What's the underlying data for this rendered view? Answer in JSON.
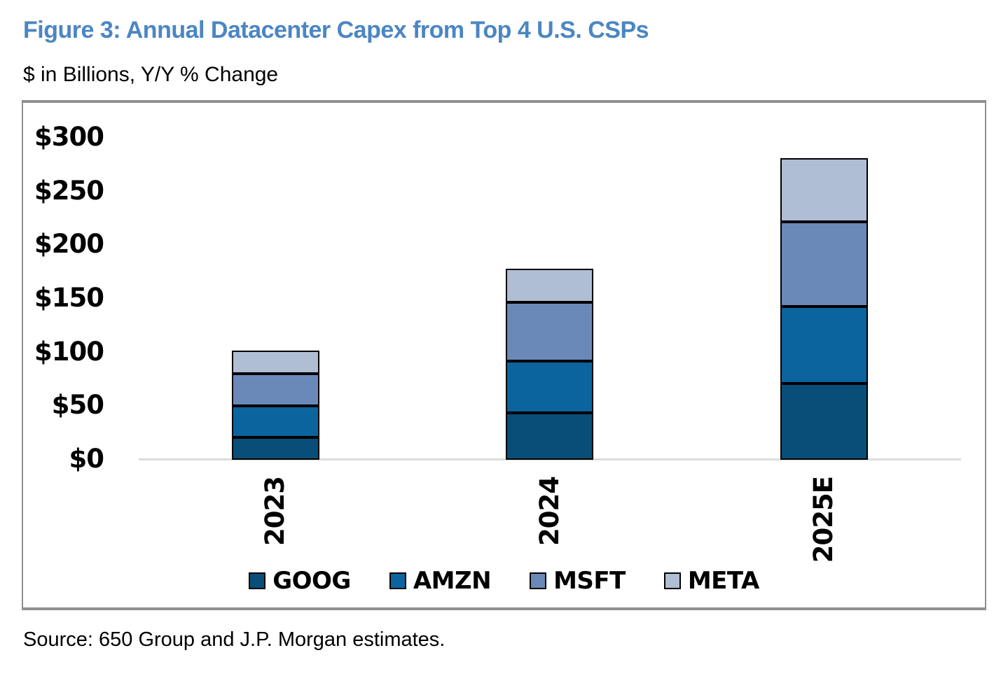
{
  "figure": {
    "title": "Figure 3: Annual Datacenter Capex from Top 4 U.S. CSPs",
    "subtitle": "$ in Billions, Y/Y % Change",
    "source": "Source: 650 Group and J.P. Morgan estimates."
  },
  "colors": {
    "title": "#4b86c3",
    "frame_border": "#8f8f8f",
    "axis_line": "#dcdcdc",
    "segment_border": "#000000"
  },
  "chart_data": {
    "type": "bar",
    "stacked": true,
    "title": "Figure 3: Annual Datacenter Capex from Top 4 U.S. CSPs",
    "subtitle": "$ in Billions, Y/Y % Change",
    "categories": [
      "2023",
      "2024",
      "2025E"
    ],
    "series": [
      {
        "name": "GOOG",
        "color": "#084e78",
        "values": [
          21,
          44,
          71
        ]
      },
      {
        "name": "AMZN",
        "color": "#0b649e",
        "values": [
          29,
          48,
          72
        ]
      },
      {
        "name": "MSFT",
        "color": "#6b89b8",
        "values": [
          30,
          55,
          79
        ]
      },
      {
        "name": "META",
        "color": "#b0bed4",
        "values": [
          22,
          31,
          59
        ]
      }
    ],
    "stack_order_bottom_to_top": [
      "GOOG",
      "AMZN",
      "MSFT",
      "META"
    ],
    "totals_approx": [
      102,
      178,
      281
    ],
    "ylabel": "$ in Billions",
    "ylim": [
      0,
      300
    ],
    "ytick_step": 50,
    "ytick_labels": [
      "$0",
      "$50",
      "$100",
      "$150",
      "$200",
      "$250",
      "$300"
    ],
    "grid": false,
    "legend_position": "bottom",
    "legend": [
      "GOOG",
      "AMZN",
      "MSFT",
      "META"
    ]
  }
}
